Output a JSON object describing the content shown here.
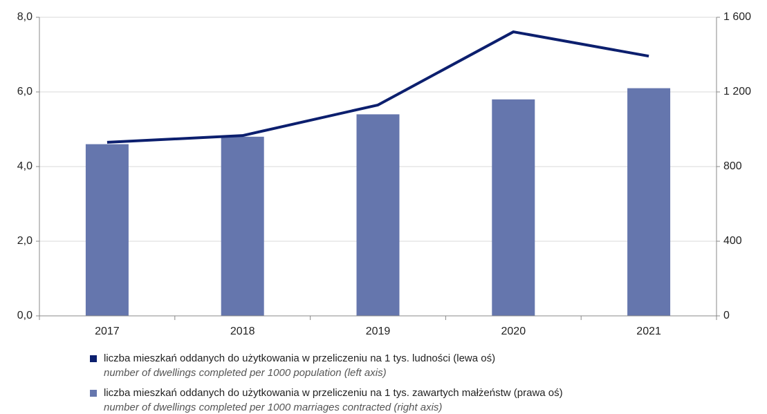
{
  "chart_data": {
    "type": "bar",
    "categories": [
      "2017",
      "2018",
      "2019",
      "2020",
      "2021"
    ],
    "series": [
      {
        "name": "liczba mieszkań oddanych do użytkowania w przeliczeniu na 1 tys. ludności (lewa oś)",
        "description": "number of dwellings completed per 1000 population (left axis)",
        "type": "line",
        "axis": "y",
        "color": "#0c1f6e",
        "values": [
          4.65,
          4.83,
          5.65,
          7.61,
          6.96
        ]
      },
      {
        "name": "liczba mieszkań oddanych do użytkowania w przeliczeniu na 1 tys. zawartych małżeństw (prawa oś)",
        "description": "number of dwellings completed per 1000 marriages contracted (right axis)",
        "type": "bar",
        "axis": "y2",
        "color": "#6576ad",
        "values": [
          920,
          960,
          1080,
          1160,
          1220
        ]
      }
    ],
    "ylim": [
      0,
      8
    ],
    "yticks": [
      {
        "value": 0,
        "label": "0,0"
      },
      {
        "value": 2,
        "label": "2,0"
      },
      {
        "value": 4,
        "label": "4,0"
      },
      {
        "value": 6,
        "label": "6,0"
      },
      {
        "value": 8,
        "label": "8,0"
      }
    ],
    "y2lim": [
      0,
      1600
    ],
    "y2ticks": [
      0,
      400,
      800,
      {
        "value": 1200,
        "label": "1 200"
      },
      {
        "value": 1600,
        "label": "1 600"
      }
    ],
    "grid": true,
    "legend": "bottom"
  }
}
